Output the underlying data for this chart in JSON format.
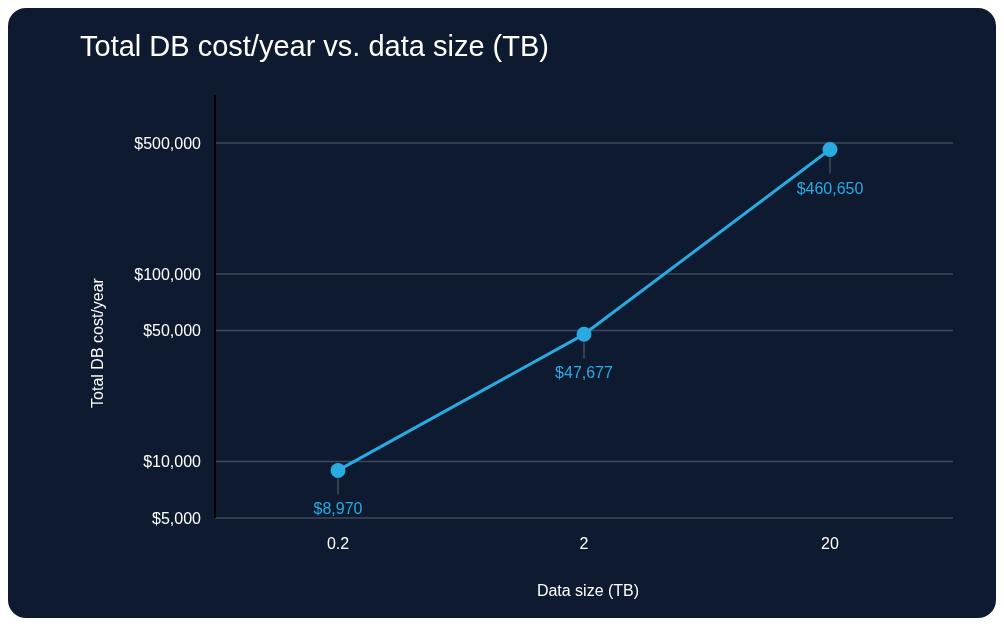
{
  "chart_data": {
    "type": "line",
    "title": "Total DB cost/year vs. data size (TB)",
    "xlabel": "Data size (TB)",
    "ylabel": "Total DB cost/year",
    "categories": [
      "0.2",
      "2",
      "20"
    ],
    "series": [
      {
        "color": "#29abe2",
        "values": [
          8970,
          47677,
          460650
        ],
        "value_labels": [
          "$8,970",
          "$47,677",
          "$460,650"
        ]
      }
    ],
    "log": "y",
    "ylim": [
      5000,
      900000
    ],
    "yticks": [
      {
        "value": 5000,
        "label": "$5,000"
      },
      {
        "value": 10000,
        "label": "$10,000"
      },
      {
        "value": 50000,
        "label": "$50,000"
      },
      {
        "value": 100000,
        "label": "$100,000"
      },
      {
        "value": 500000,
        "label": "$500,000"
      }
    ],
    "grid": "y",
    "marker": "circle",
    "line_style": "solid",
    "legend": false
  }
}
